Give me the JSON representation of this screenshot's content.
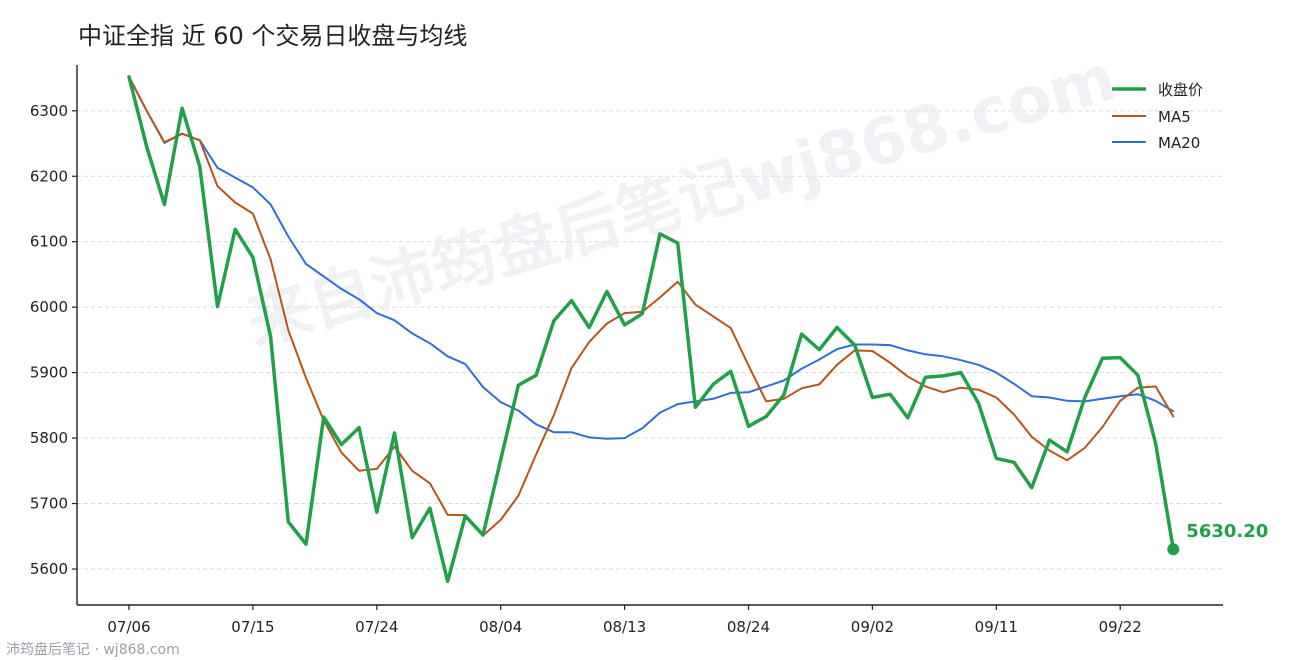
{
  "chart_data": {
    "type": "line",
    "title": "中证全指 近 60 个交易日收盘与均线",
    "xlabel": "",
    "ylabel": "",
    "ylim": [
      5545,
      6370
    ],
    "x_tick_labels": [
      "07/06",
      "07/15",
      "07/24",
      "08/04",
      "08/13",
      "08/24",
      "09/02",
      "09/11",
      "09/22"
    ],
    "x_tick_index": [
      0,
      7,
      14,
      21,
      28,
      35,
      42,
      49,
      56
    ],
    "y_ticks": [
      5600,
      5700,
      5800,
      5900,
      6000,
      6100,
      6200,
      6300
    ],
    "grid": true,
    "legend_position": "top-right",
    "series": [
      {
        "name": "收盘价",
        "color": "#21a04a",
        "values": [
          6352,
          6245,
          6157,
          6304,
          6215,
          6001,
          6119,
          6076,
          5955,
          5672,
          5638,
          5832,
          5790,
          5816,
          5687,
          5808,
          5648,
          5693,
          5581,
          5681,
          5652,
          5767,
          5881,
          5896,
          5979,
          6010,
          5969,
          6024,
          5973,
          5990,
          6112,
          6098,
          5847,
          5882,
          5902,
          5818,
          5833,
          5866,
          5959,
          5935,
          5969,
          5942,
          5862,
          5867,
          5831,
          5893,
          5895,
          5900,
          5853,
          5769,
          5763,
          5724,
          5797,
          5779,
          5862,
          5922,
          5923,
          5896,
          5792,
          5630.2
        ]
      },
      {
        "name": "MA5",
        "color": "#b5561a",
        "values": [
          6352,
          6300,
          6252,
          6265,
          6255,
          6185,
          6160,
          6143,
          6073,
          5965,
          5892,
          5827,
          5778,
          5750,
          5753,
          5787,
          5750,
          5731,
          5683,
          5682,
          5651,
          5675,
          5712,
          5775,
          5835,
          5907,
          5947,
          5975,
          5991,
          5993,
          6015,
          6039,
          6004,
          5986,
          5968,
          5911,
          5856,
          5860,
          5876,
          5882,
          5912,
          5934,
          5933,
          5915,
          5894,
          5879,
          5870,
          5877,
          5874,
          5862,
          5836,
          5802,
          5781,
          5766,
          5785,
          5817,
          5857,
          5877,
          5879,
          5833
        ]
      },
      {
        "name": "MA20",
        "color": "#2f6fd6",
        "values": [
          6352,
          6300,
          6251,
          6265,
          6255,
          6213,
          6198,
          6183,
          6157,
          6108,
          6066,
          6047,
          6028,
          6012,
          5991,
          5980,
          5960,
          5945,
          5925,
          5913,
          5878,
          5855,
          5842,
          5821,
          5809,
          5809,
          5801,
          5799,
          5800,
          5815,
          5839,
          5852,
          5856,
          5860,
          5869,
          5870,
          5879,
          5888,
          5906,
          5920,
          5936,
          5943,
          5943,
          5942,
          5934,
          5928,
          5925,
          5919,
          5912,
          5900,
          5883,
          5864,
          5862,
          5857,
          5856,
          5860,
          5864,
          5867,
          5857,
          5841
        ]
      }
    ],
    "last_value_label": "5630.20"
  },
  "watermark": "来自沛筠盘后笔记wj868.com",
  "footer": "沛筠盘后笔记 · wj868.com"
}
